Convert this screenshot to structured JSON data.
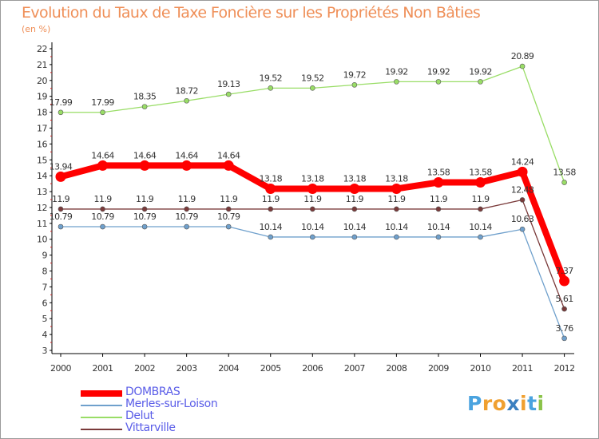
{
  "title": "Evolution du Taux de Taxe Foncière sur les Propriétés Non Bâties",
  "subtitle": "(en %)",
  "chart_data": {
    "type": "line",
    "title": "Evolution du Taux de Taxe Foncière sur les Propriétés Non Bâties",
    "ylabel": "(en %)",
    "xlabel": "",
    "categories": [
      "2000",
      "2001",
      "2002",
      "2003",
      "2004",
      "2005",
      "2006",
      "2007",
      "2008",
      "2009",
      "2010",
      "2011",
      "2012"
    ],
    "ylim": [
      3,
      22
    ],
    "yticks": [
      "3",
      "4",
      "5",
      "6",
      "7",
      "8",
      "9",
      "10",
      "11",
      "12",
      "13",
      "14",
      "15",
      "16",
      "17",
      "18",
      "19",
      "20",
      "21",
      "22"
    ],
    "grid": false,
    "series": [
      {
        "name": "DOMBRAS",
        "color": "#ff0000",
        "values": [
          13.94,
          14.64,
          14.64,
          14.64,
          14.64,
          13.18,
          13.18,
          13.18,
          13.18,
          13.58,
          13.58,
          14.24,
          7.37
        ],
        "labels": [
          "13.94",
          "14.64",
          "14.64",
          "14.64",
          "14.64",
          "13.18",
          "13.18",
          "13.18",
          "13.18",
          "13.58",
          "13.58",
          "14.24",
          "7.37"
        ]
      },
      {
        "name": "Merles-sur-Loison",
        "color": "#6fa0cc",
        "values": [
          10.79,
          10.79,
          10.79,
          10.79,
          10.79,
          10.14,
          10.14,
          10.14,
          10.14,
          10.14,
          10.14,
          10.63,
          3.76
        ],
        "labels": [
          "10.79",
          "10.79",
          "10.79",
          "10.79",
          "10.79",
          "10.14",
          "10.14",
          "10.14",
          "10.14",
          "10.14",
          "10.14",
          "10.63",
          "3.76"
        ]
      },
      {
        "name": "Delut",
        "color": "#99dd66",
        "values": [
          17.99,
          17.99,
          18.35,
          18.72,
          19.13,
          19.52,
          19.52,
          19.72,
          19.92,
          19.92,
          19.92,
          20.89,
          13.58
        ],
        "labels": [
          "17.99",
          "17.99",
          "18.35",
          "18.72",
          "19.13",
          "19.52",
          "19.52",
          "19.72",
          "19.92",
          "19.92",
          "19.92",
          "20.89",
          "13.58"
        ]
      },
      {
        "name": "Vittarville",
        "color": "#7a3a3a",
        "values": [
          11.9,
          11.9,
          11.9,
          11.9,
          11.9,
          11.9,
          11.9,
          11.9,
          11.9,
          11.9,
          11.9,
          12.48,
          5.61
        ],
        "labels": [
          "11.9",
          "11.9",
          "11.9",
          "11.9",
          "11.9",
          "11.9",
          "11.9",
          "11.9",
          "11.9",
          "11.9",
          "11.9",
          "12.48",
          "5.61"
        ]
      }
    ]
  },
  "logo": {
    "letters": [
      "P",
      "r",
      "o",
      "x",
      "i",
      "t",
      "i"
    ],
    "colors": [
      "#4aa3df",
      "#f0a030",
      "#f0a030",
      "#3a7fc0",
      "#f0a030",
      "#4aa3df",
      "#8bc34a"
    ]
  }
}
